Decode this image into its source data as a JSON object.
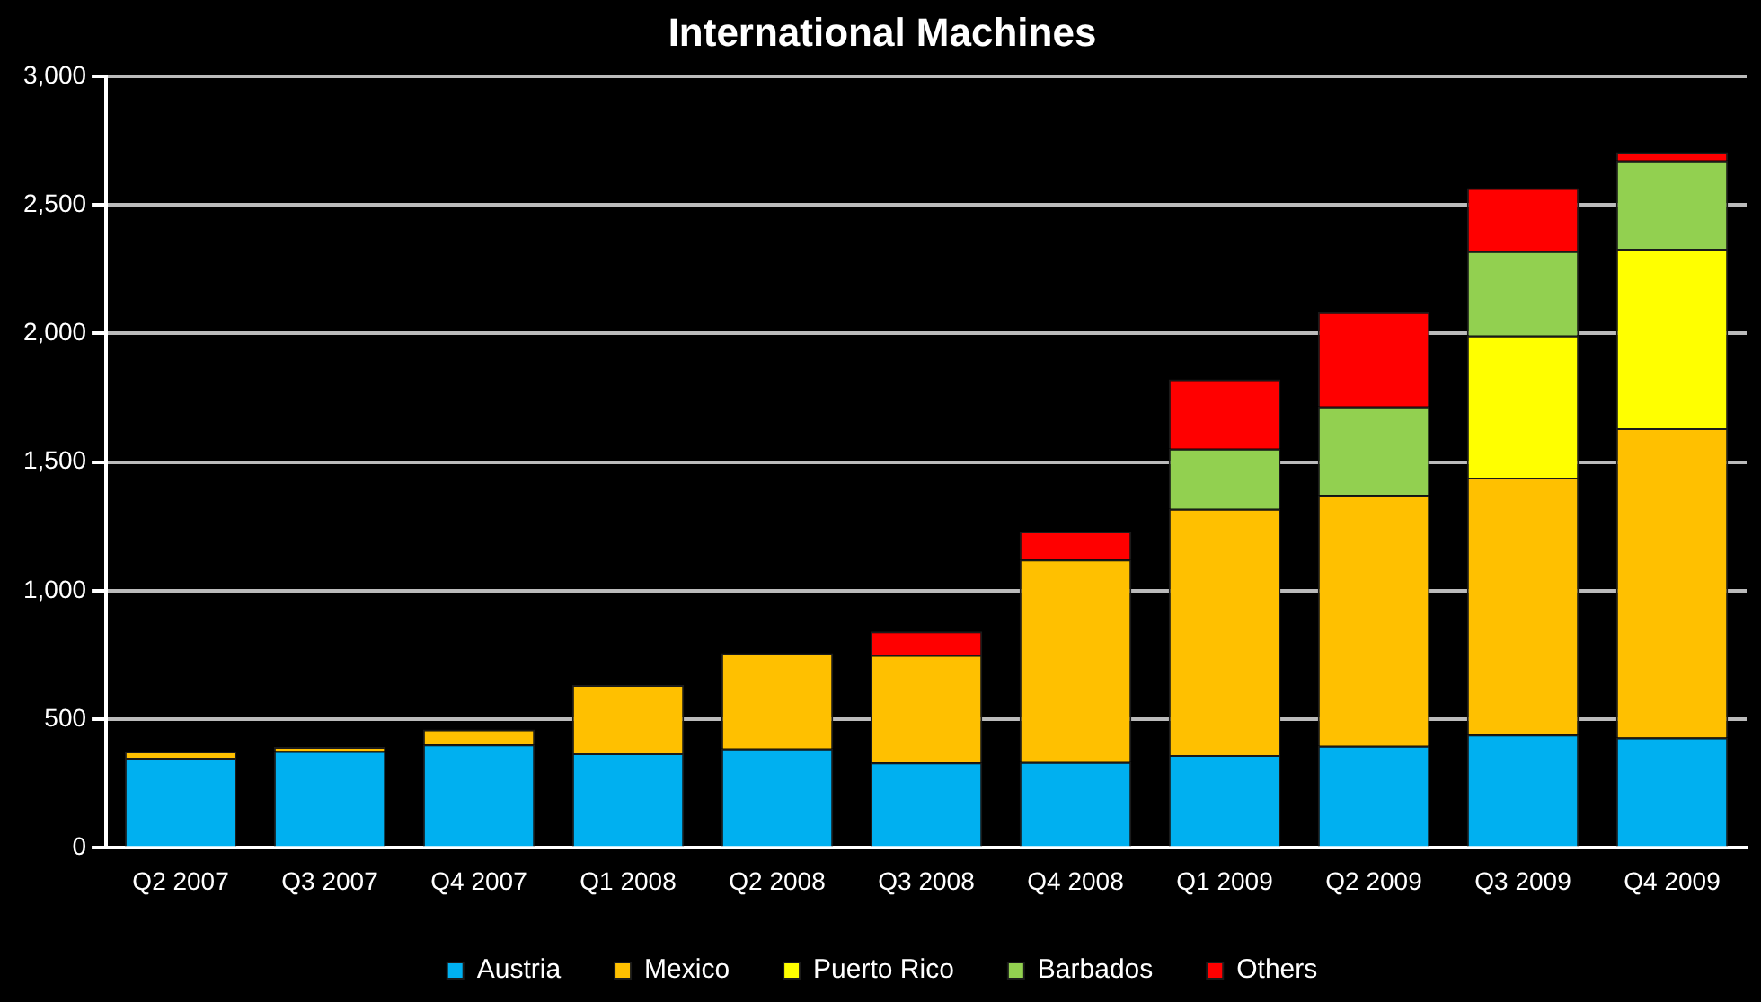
{
  "chart_data": {
    "type": "bar",
    "title": "International Machines",
    "stacked": true,
    "categories": [
      "Q2 2007",
      "Q3 2007",
      "Q4 2007",
      "Q1 2008",
      "Q2 2008",
      "Q3 2008",
      "Q4 2008",
      "Q1 2009",
      "Q2 2009",
      "Q3 2009",
      "Q4 2009"
    ],
    "series": [
      {
        "name": "Austria",
        "color": "#00b0f0",
        "values": [
          350,
          377,
          402,
          368,
          386,
          332,
          334,
          361,
          397,
          440,
          429
        ]
      },
      {
        "name": "Mexico",
        "color": "#ffc000",
        "values": [
          25,
          15,
          58,
          265,
          371,
          418,
          787,
          957,
          975,
          999,
          1202
        ]
      },
      {
        "name": "Puerto Rico",
        "color": "#ffff00",
        "values": [
          null,
          null,
          null,
          null,
          null,
          null,
          null,
          null,
          null,
          553,
          698
        ]
      },
      {
        "name": "Barbados",
        "color": "#92d050",
        "values": [
          null,
          null,
          null,
          null,
          null,
          null,
          null,
          234,
          344,
          328,
          343
        ]
      },
      {
        "name": "Others",
        "color": "#ff0000",
        "values": [
          null,
          null,
          null,
          null,
          null,
          92,
          109,
          269,
          366,
          245,
          32
        ]
      }
    ],
    "ylim": [
      0,
      3000
    ],
    "yticks": [
      0,
      {
        "value": 500,
        "label": "500"
      },
      {
        "value": 1000,
        "label": "1,000"
      },
      {
        "value": 1500,
        "label": "1,500"
      },
      {
        "value": 2000,
        "label": "2,000"
      },
      {
        "value": 2500,
        "label": "2,500"
      },
      {
        "value": 3000,
        "label": "3,000"
      }
    ],
    "grid": "y",
    "legend": "bottom"
  }
}
